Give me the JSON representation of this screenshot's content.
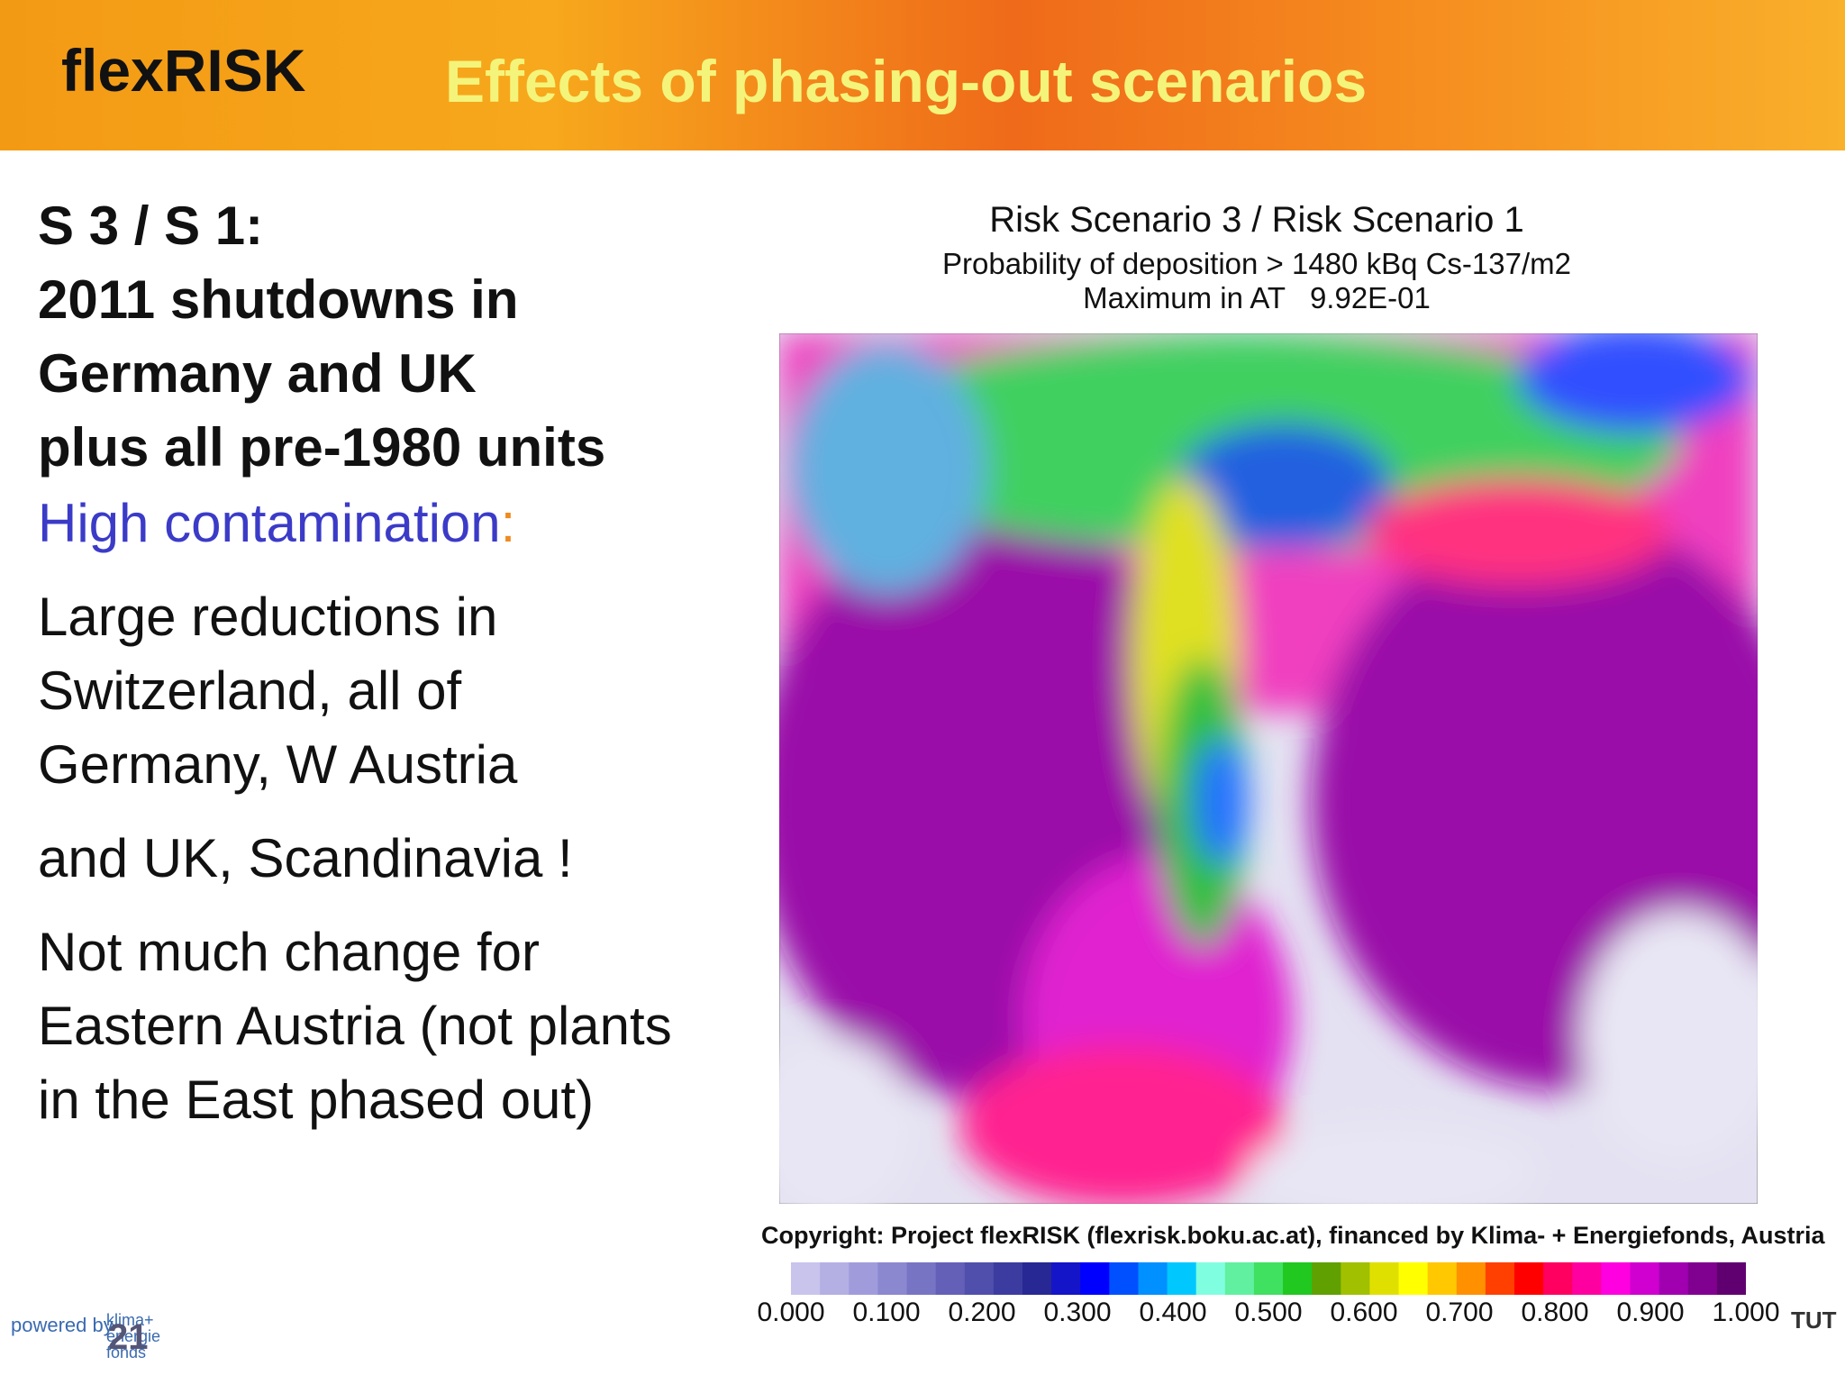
{
  "header": {
    "logo": "flexRISK",
    "title": "Effects of phasing-out scenarios"
  },
  "left": {
    "heading": [
      "S 3 / S 1:",
      "2011 shutdowns in",
      "Germany and UK",
      "plus all pre-1980 units"
    ],
    "highlight": "High contamination",
    "highlight_colon": ":",
    "paragraphs": [
      [
        "Large reductions in",
        "Switzerland, all of",
        "Germany, W Austria"
      ],
      [
        "and UK, Scandinavia !"
      ],
      [
        "Not much change for",
        "Eastern Austria (not plants",
        "in the East phased out)"
      ]
    ]
  },
  "map": {
    "title": "Risk Scenario 3 / Risk Scenario 1",
    "subtitle": "Probability of deposition > 1480 kBq Cs-137/m2",
    "maximum": "Maximum in AT   9.92E-01",
    "copyright": "Copyright: Project flexRISK (flexrisk.boku.ac.at), financed by Klima- + Energiefonds, Austria"
  },
  "colorbar": {
    "colors": [
      "#c8c4ec",
      "#b4b0e4",
      "#a09cdc",
      "#8c88d0",
      "#7874c4",
      "#6460b8",
      "#5050ac",
      "#3c3ca0",
      "#282894",
      "#1414c8",
      "#0000ff",
      "#0050ff",
      "#0090ff",
      "#00c8ff",
      "#80ffe0",
      "#60f0a0",
      "#40e060",
      "#20c820",
      "#60a000",
      "#a0c000",
      "#e0e000",
      "#ffff00",
      "#ffc800",
      "#ff9000",
      "#ff4000",
      "#ff0000",
      "#ff0060",
      "#ff00a0",
      "#ff00e0",
      "#d000d0",
      "#a000b0",
      "#800090",
      "#600070"
    ],
    "labels": [
      "0.000",
      "0.100",
      "0.200",
      "0.300",
      "0.400",
      "0.500",
      "0.600",
      "0.700",
      "0.800",
      "0.900",
      "1.000"
    ]
  },
  "footer": {
    "powered": "powered by",
    "fund": "klima+ energie fonds",
    "page": "21",
    "tut": "TUT"
  }
}
